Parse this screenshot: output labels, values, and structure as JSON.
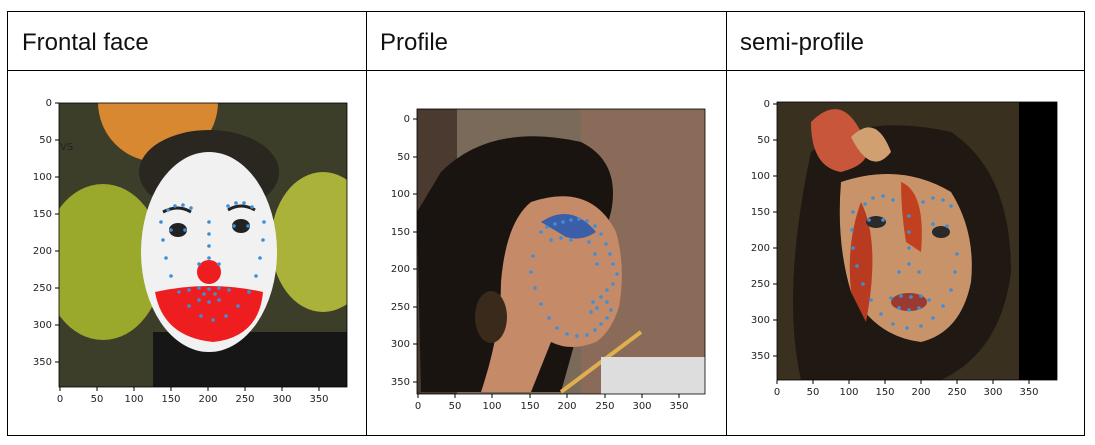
{
  "columns": [
    {
      "header": "Frontal face"
    },
    {
      "header": "Profile"
    },
    {
      "header": "semi-profile"
    }
  ],
  "axis_ticks": {
    "x": [
      "0",
      "50",
      "100",
      "150",
      "200",
      "250",
      "300",
      "350"
    ],
    "y": [
      "0",
      "50",
      "100",
      "150",
      "200",
      "250",
      "300",
      "350"
    ]
  },
  "frontal_overlay_text": "VS",
  "colors": {
    "landmark": "#3f8fd8",
    "border": "#000000",
    "clown_red": "#ee1d20",
    "clown_white": "#f1f1f1"
  },
  "icons": [
    "frontal-face-photo",
    "profile-face-photo",
    "semi-profile-face-photo",
    "facial-landmark-points"
  ]
}
